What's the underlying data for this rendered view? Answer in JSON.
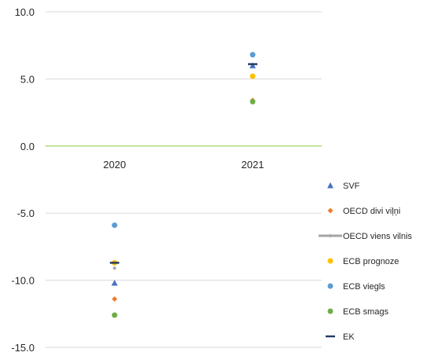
{
  "chart_data": {
    "type": "scatter",
    "title": "",
    "xlabel": "",
    "ylabel": "",
    "categories": [
      "2020",
      "2021"
    ],
    "ylim": [
      -15.0,
      10.0
    ],
    "y_ticks": [
      "10.0",
      "5.0",
      "0.0",
      "-5.0",
      "-10.0",
      "-15.0"
    ],
    "grid": true,
    "legend_position": "right",
    "series": [
      {
        "name": "SVF",
        "values": [
          -10.2,
          6.0
        ],
        "color": "#4472c4",
        "marker": "triangle"
      },
      {
        "name": "OECD divi viļņi",
        "values": [
          -11.4,
          3.4
        ],
        "color": "#ed7d31",
        "marker": "diamond"
      },
      {
        "name": "OECD viens vilnis",
        "values": [
          -9.1,
          3.3
        ],
        "color": "#a5a5a5",
        "marker": "line-diamond"
      },
      {
        "name": "ECB prognoze",
        "values": [
          -8.7,
          5.2
        ],
        "color": "#ffc000",
        "marker": "circle"
      },
      {
        "name": "ECB viegls",
        "values": [
          -5.9,
          6.8
        ],
        "color": "#5b9bd5",
        "marker": "circle"
      },
      {
        "name": "ECB smags",
        "values": [
          -12.6,
          3.3
        ],
        "color": "#70ad47",
        "marker": "circle"
      },
      {
        "name": "EK",
        "values": [
          -8.7,
          6.1
        ],
        "color": "#203864",
        "marker": "dash"
      }
    ]
  }
}
